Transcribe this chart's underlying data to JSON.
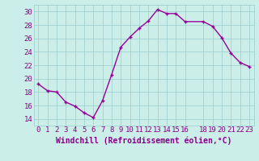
{
  "x": [
    0,
    1,
    2,
    3,
    4,
    5,
    6,
    7,
    8,
    9,
    10,
    11,
    12,
    13,
    14,
    15,
    16,
    18,
    19,
    20,
    21,
    22,
    23
  ],
  "y": [
    19.2,
    18.2,
    18.0,
    16.5,
    15.9,
    14.9,
    14.2,
    16.7,
    20.6,
    24.7,
    26.2,
    27.5,
    28.6,
    30.3,
    29.7,
    29.7,
    28.5,
    28.5,
    27.8,
    26.1,
    23.8,
    22.4,
    21.8
  ],
  "line_color": "#990099",
  "marker": "+",
  "background_color": "#cceee8",
  "grid_color": "#99cccc",
  "tick_color": "#880088",
  "xlabel": "Windchill (Refroidissement éolien,°C)",
  "xlabel_color": "#880088",
  "xlim": [
    -0.5,
    23.5
  ],
  "ylim": [
    13.0,
    31.0
  ],
  "yticks": [
    14,
    16,
    18,
    20,
    22,
    24,
    26,
    28,
    30
  ],
  "xticks": [
    0,
    1,
    2,
    3,
    4,
    5,
    6,
    7,
    8,
    9,
    10,
    11,
    12,
    13,
    14,
    15,
    16,
    18,
    19,
    20,
    21,
    22,
    23
  ],
  "font_size_ticks": 6.5,
  "font_size_xlabel": 7.0,
  "linewidth": 1.0,
  "markersize": 3.5,
  "markeredgewidth": 1.0
}
